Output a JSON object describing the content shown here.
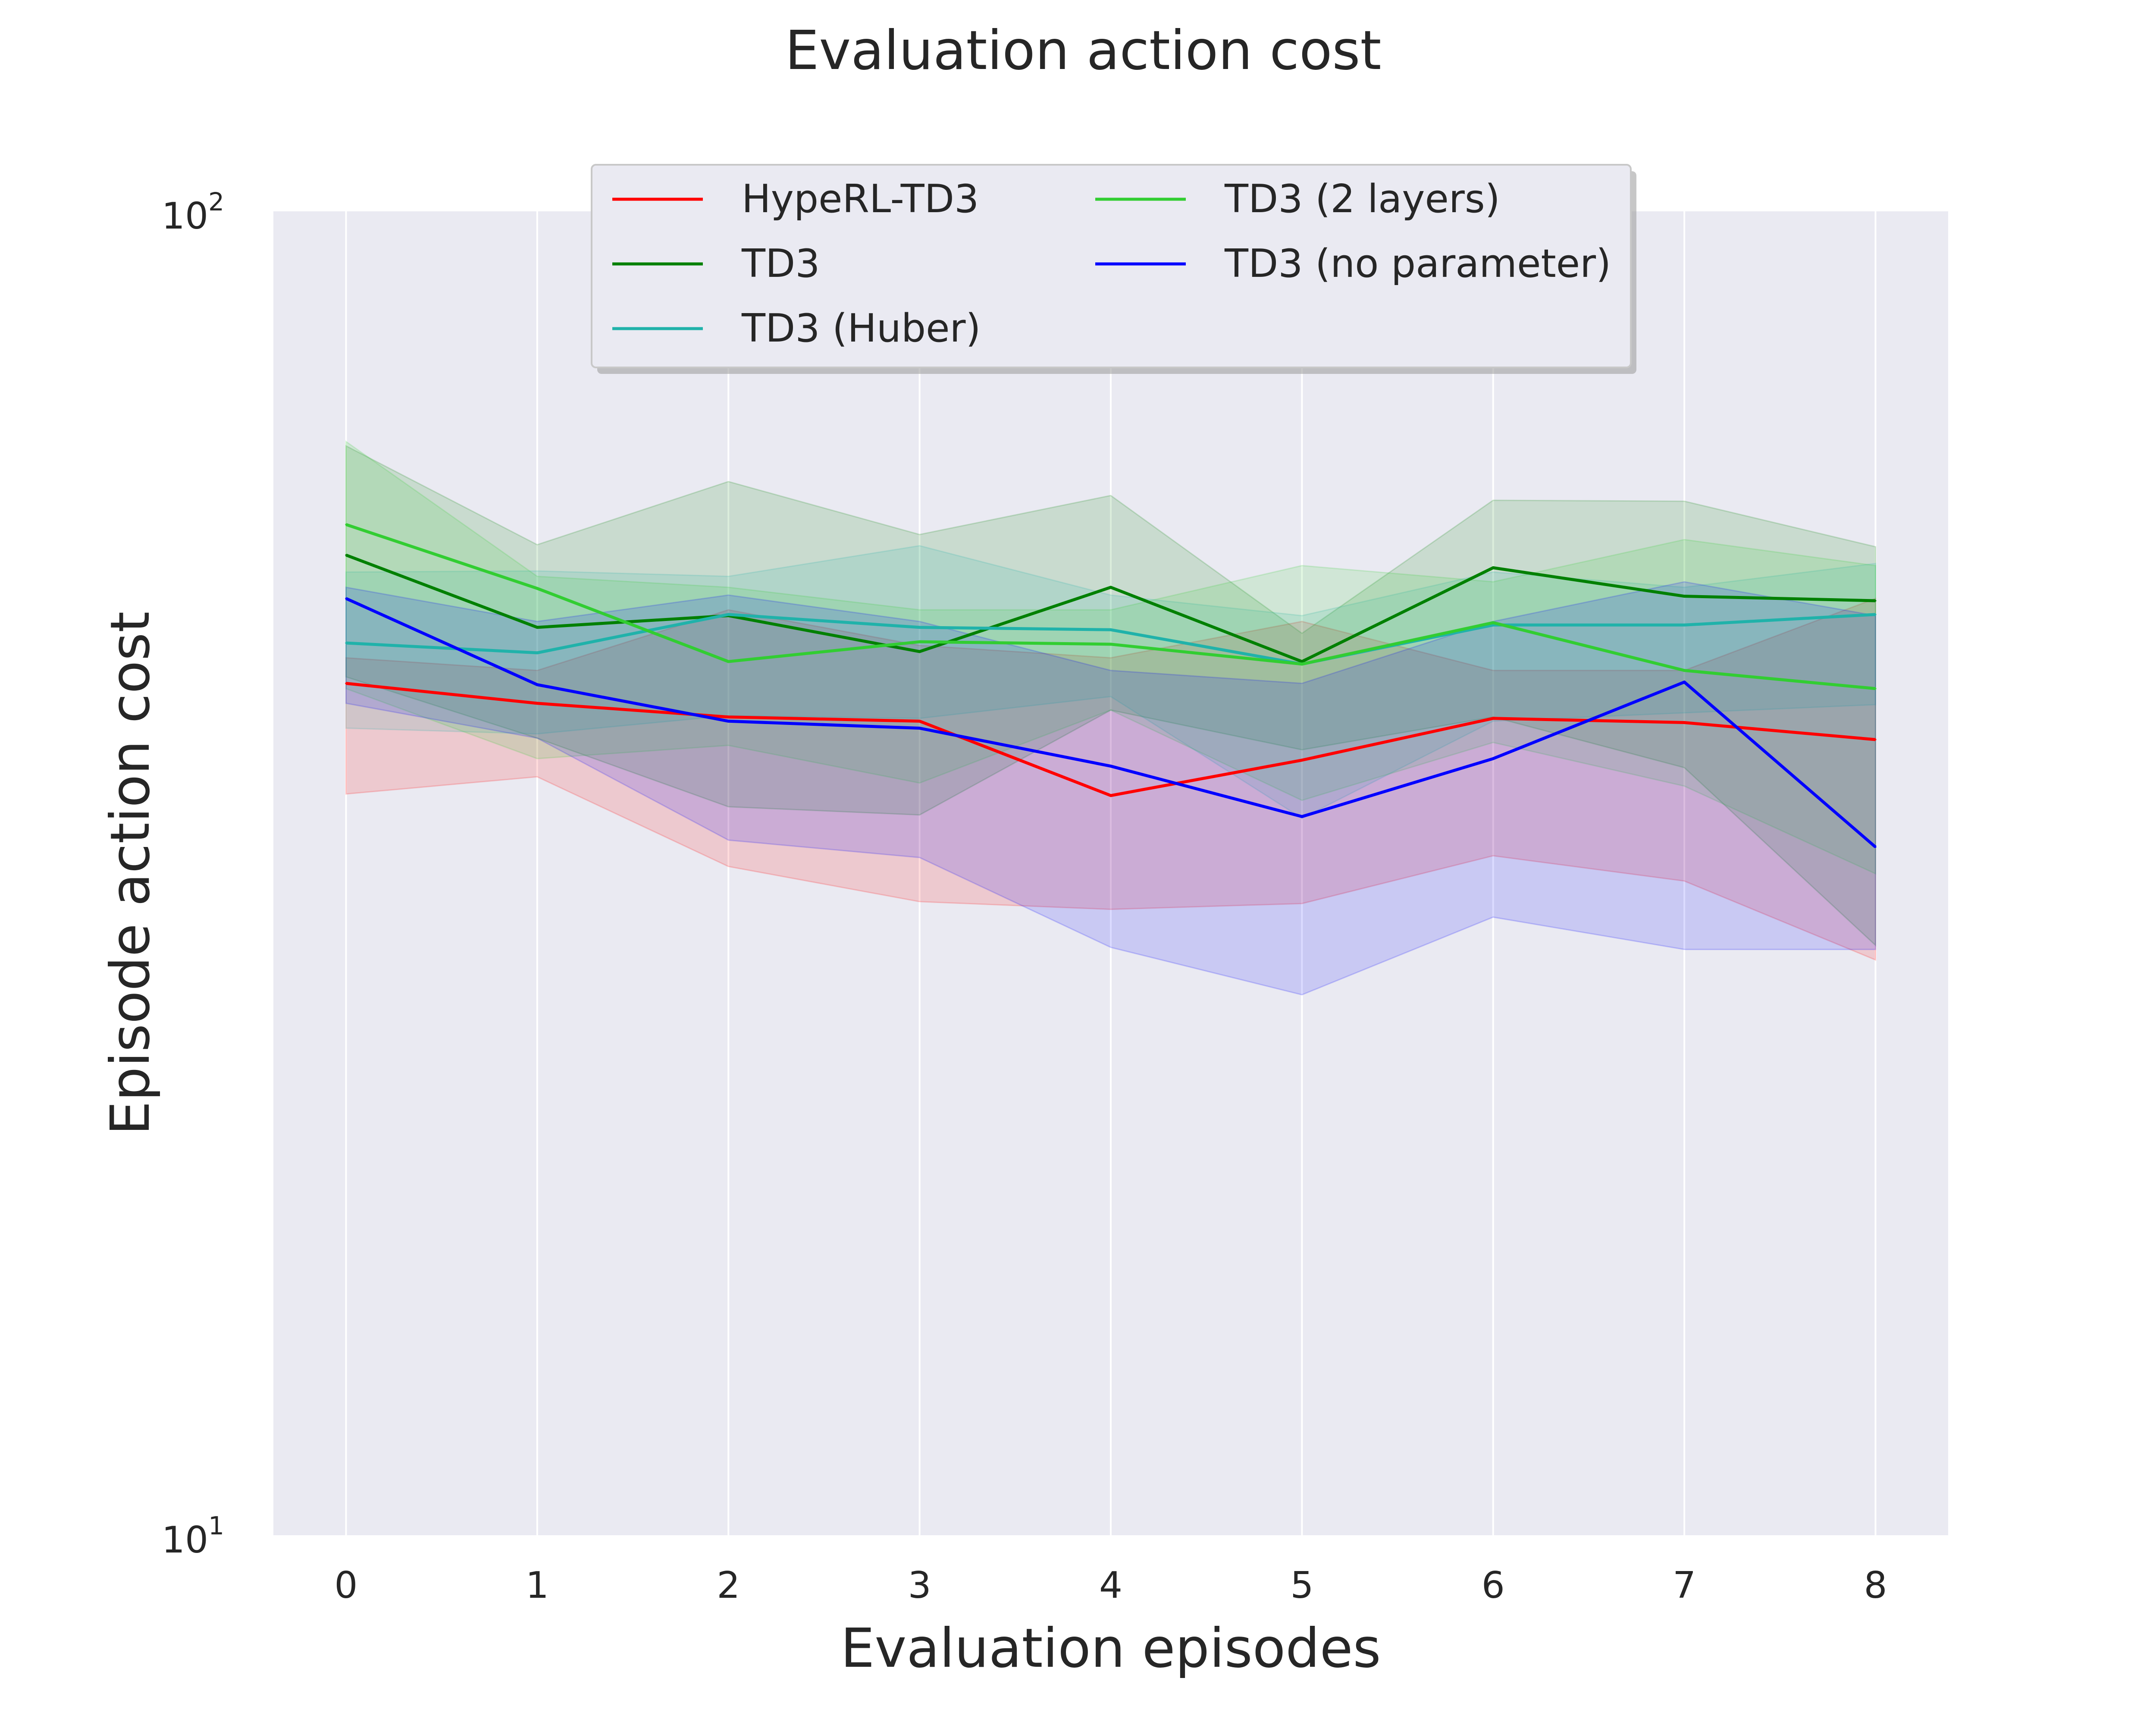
{
  "chart_data": {
    "type": "line",
    "title": "Evaluation action cost",
    "xlabel": "Evaluation episodes",
    "ylabel": "Episode action cost",
    "yscale": "log",
    "ylim": [
      10,
      100
    ],
    "xlim": [
      -0.38,
      8.38
    ],
    "grid": true,
    "legend_position": "top-center",
    "x": [
      0,
      1,
      2,
      3,
      4,
      5,
      6,
      7,
      8
    ],
    "x_tick_labels": [
      "0",
      "1",
      "2",
      "3",
      "4",
      "5",
      "6",
      "7",
      "8"
    ],
    "y_ticks": [
      {
        "value": 100,
        "base": "10",
        "exp": "2"
      },
      {
        "value": 10,
        "base": "10",
        "exp": "1"
      }
    ],
    "series": [
      {
        "name": "HypeRL-TD3",
        "color": "#ff0000",
        "values": [
          44.0,
          42.5,
          41.5,
          41.2,
          36.2,
          38.5,
          41.4,
          41.1,
          39.9
        ],
        "lower": [
          36.3,
          37.4,
          32.0,
          30.1,
          29.7,
          30.0,
          32.6,
          31.2,
          27.2
        ],
        "upper": [
          46.0,
          45.0,
          50.0,
          47.0,
          46.0,
          49.0,
          45.0,
          45.0,
          51.0
        ]
      },
      {
        "name": "TD3",
        "color": "#008000",
        "values": [
          55.0,
          48.5,
          49.5,
          46.5,
          52.0,
          45.7,
          53.8,
          51.2,
          50.8
        ],
        "lower": [
          44.5,
          40.0,
          35.5,
          35.0,
          42.0,
          39.2,
          41.5,
          38.0,
          27.9
        ],
        "upper": [
          66.5,
          56.0,
          62.5,
          57.0,
          61.0,
          48.0,
          60.5,
          60.4,
          55.8
        ]
      },
      {
        "name": "TD3 (Huber)",
        "color": "#20b2aa",
        "values": [
          47.2,
          46.4,
          49.6,
          48.5,
          48.3,
          45.5,
          48.7,
          48.7,
          49.6
        ],
        "lower": [
          40.7,
          40.3,
          41.6,
          41.4,
          43.0,
          34.8,
          41.2,
          41.8,
          42.4
        ],
        "upper": [
          53.4,
          53.5,
          53.0,
          55.9,
          51.3,
          49.5,
          53.4,
          52.0,
          54.2
        ]
      },
      {
        "name": "TD3 (2 layers)",
        "color": "#32cd32",
        "values": [
          58.0,
          51.9,
          45.7,
          47.3,
          47.1,
          45.5,
          48.9,
          45.0,
          43.6
        ],
        "lower": [
          43.6,
          38.6,
          39.5,
          37.0,
          42.0,
          35.9,
          39.7,
          36.8,
          31.6
        ],
        "upper": [
          67.0,
          53.0,
          52.0,
          50.0,
          50.0,
          54.0,
          52.5,
          56.5,
          54.0
        ]
      },
      {
        "name": "TD3 (no parameter)",
        "color": "#0000ff",
        "values": [
          51.0,
          43.9,
          41.2,
          40.7,
          38.1,
          34.9,
          38.6,
          44.1,
          33.1
        ],
        "lower": [
          42.5,
          40.0,
          33.5,
          32.5,
          27.8,
          25.6,
          29.3,
          27.7,
          27.7
        ],
        "upper": [
          52.0,
          49.0,
          51.3,
          49.0,
          45.0,
          44.0,
          49.0,
          52.5,
          49.5
        ]
      }
    ]
  }
}
